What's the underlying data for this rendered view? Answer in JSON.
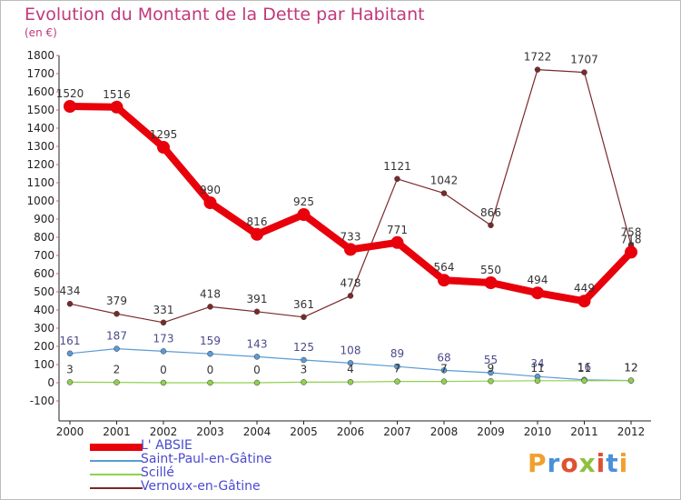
{
  "chart_data": {
    "type": "line",
    "title": "Evolution du Montant de la Dette par Habitant",
    "unit_label": "(en €)",
    "x": [
      "2000",
      "2001",
      "2002",
      "2003",
      "2004",
      "2005",
      "2006",
      "2007",
      "2008",
      "2009",
      "2010",
      "2011",
      "2012"
    ],
    "ylim": [
      -100,
      1800
    ],
    "yticks": [
      -100,
      0,
      100,
      200,
      300,
      400,
      500,
      600,
      700,
      800,
      900,
      1000,
      1100,
      1200,
      1300,
      1400,
      1500,
      1600,
      1700,
      1800
    ],
    "grid": false,
    "legend_position": "bottom-left",
    "series": [
      {
        "name": "L' ABSIE",
        "color": "#e8000b",
        "values": [
          1520,
          1516,
          1295,
          990,
          816,
          925,
          733,
          771,
          564,
          550,
          494,
          449,
          718
        ]
      },
      {
        "name": "Saint-Paul-en-Gâtine",
        "color": "#5b9bd5",
        "values": [
          161,
          187,
          173,
          159,
          143,
          125,
          108,
          89,
          68,
          55,
          34,
          16,
          12
        ]
      },
      {
        "name": "Scillé",
        "color": "#8fd14f",
        "values": [
          3,
          2,
          0,
          0,
          0,
          3,
          4,
          7,
          7,
          9,
          11,
          11,
          12
        ]
      },
      {
        "name": "Vernoux-en-Gâtine",
        "color": "#7a2a2a",
        "values": [
          434,
          379,
          331,
          418,
          391,
          361,
          478,
          1121,
          1042,
          866,
          1722,
          1707,
          758
        ]
      }
    ]
  },
  "logo": {
    "letters": [
      "P",
      "r",
      "o",
      "x",
      "i",
      "t",
      "i"
    ],
    "colors": [
      "#f0a030",
      "#4a90d9",
      "#e05030",
      "#8fc040",
      "#e05030",
      "#4a90d9",
      "#f0a030"
    ]
  }
}
